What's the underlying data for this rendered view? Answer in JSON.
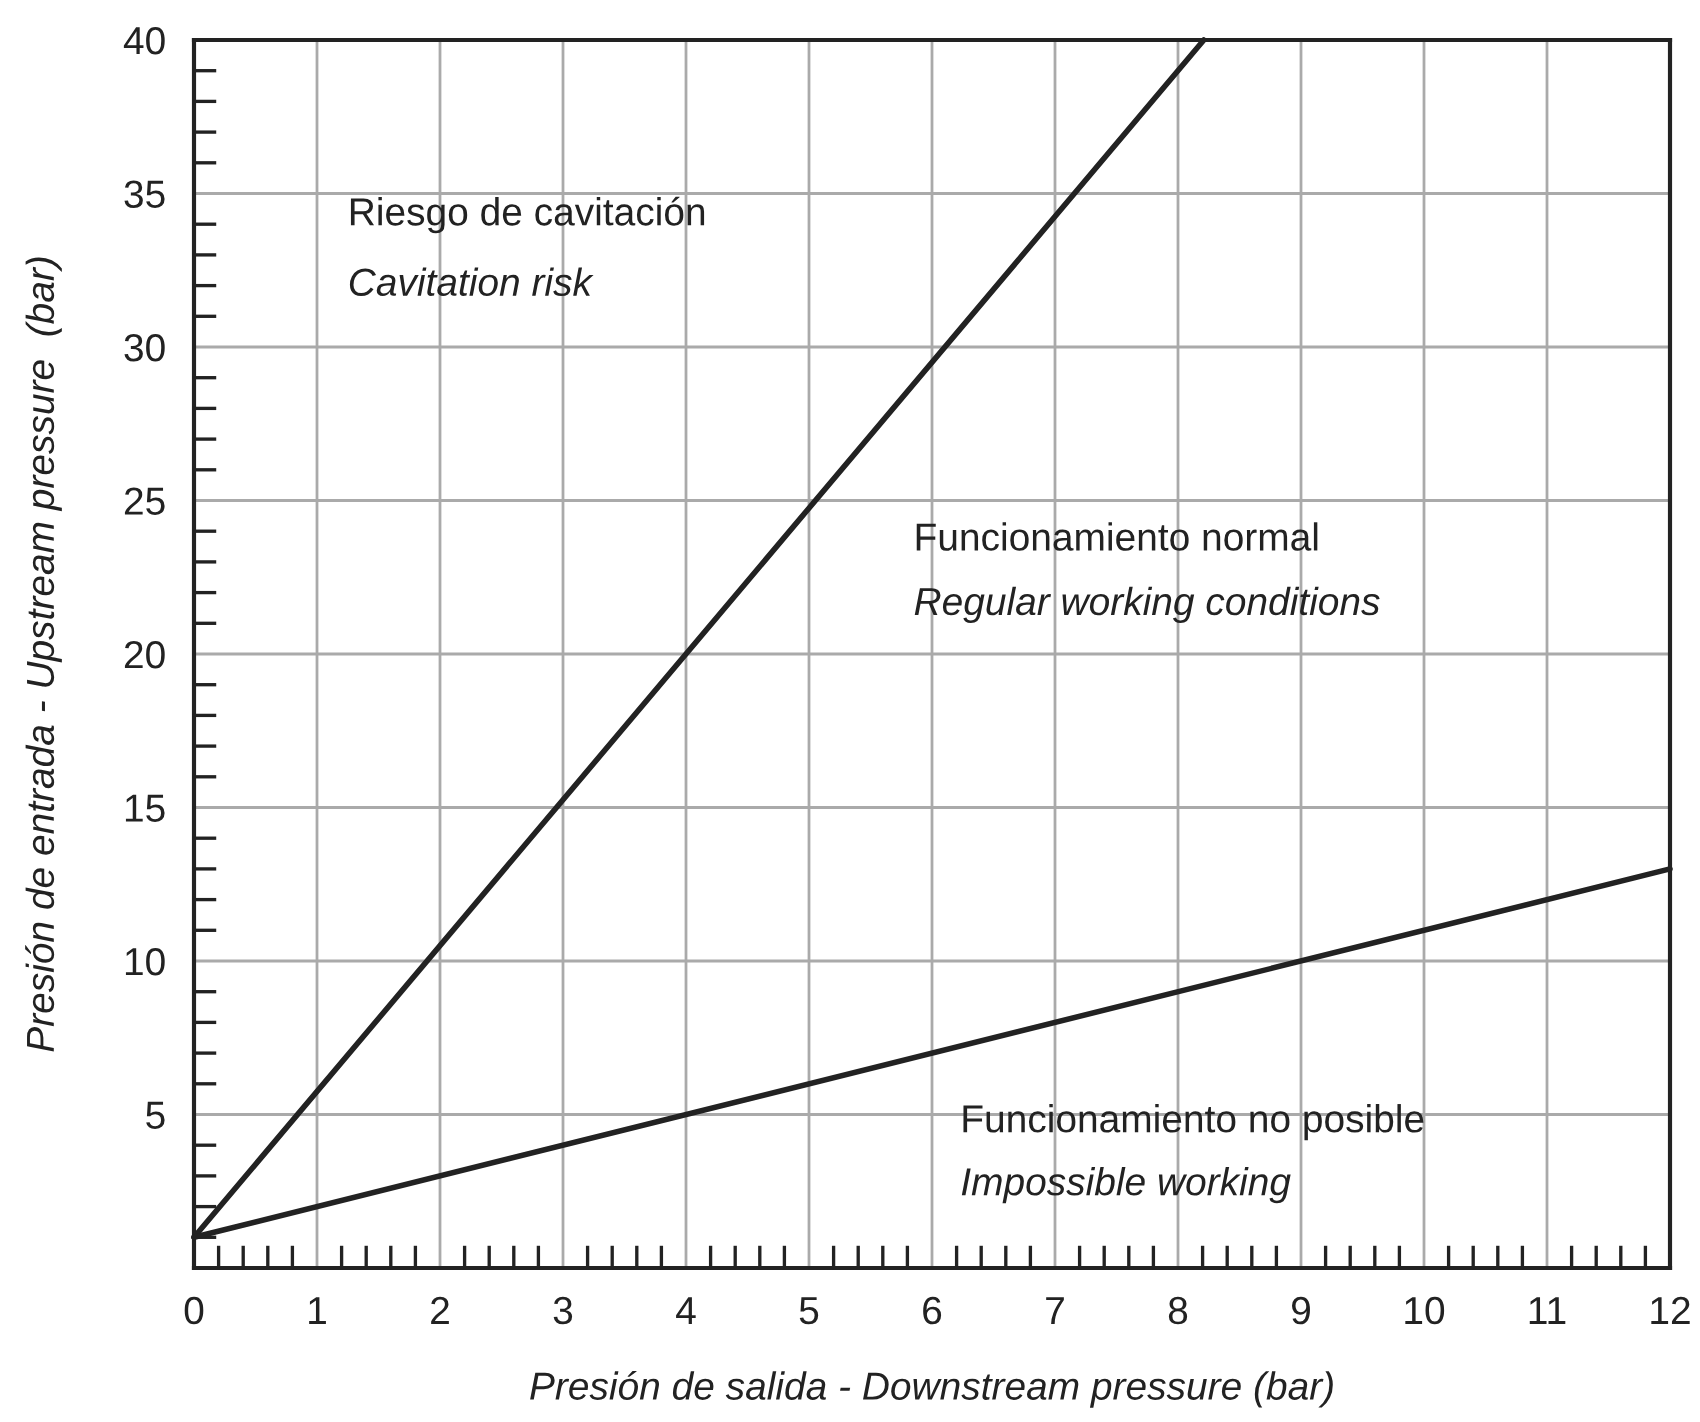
{
  "chart_data": {
    "type": "line",
    "xlabel": "Presión de salida - Downstream pressure (bar)",
    "ylabel": "Presión de entrada - Upstream pressure  (bar)",
    "series": [
      {
        "x": [
          0,
          8.21
        ],
        "values": [
          1,
          40
        ],
        "color": "#222222"
      },
      {
        "x": [
          0,
          12
        ],
        "values": [
          1,
          13
        ],
        "color": "#222222"
      }
    ],
    "xlim": [
      0,
      12
    ],
    "xticks": [
      0,
      1,
      2,
      3,
      4,
      5,
      6,
      7,
      8,
      9,
      10,
      11,
      12
    ],
    "ylim": [
      0,
      40
    ],
    "yticks": [
      5,
      10,
      15,
      20,
      25,
      30,
      35,
      40
    ],
    "grid": true,
    "marker": "none",
    "line_style": "solid",
    "annotations": [
      "Riesgo de cavitación",
      "Cavitation risk",
      "Funcionamiento normal",
      "Regular working conditions",
      "Funcionamiento no posible",
      "Impossible working"
    ]
  }
}
